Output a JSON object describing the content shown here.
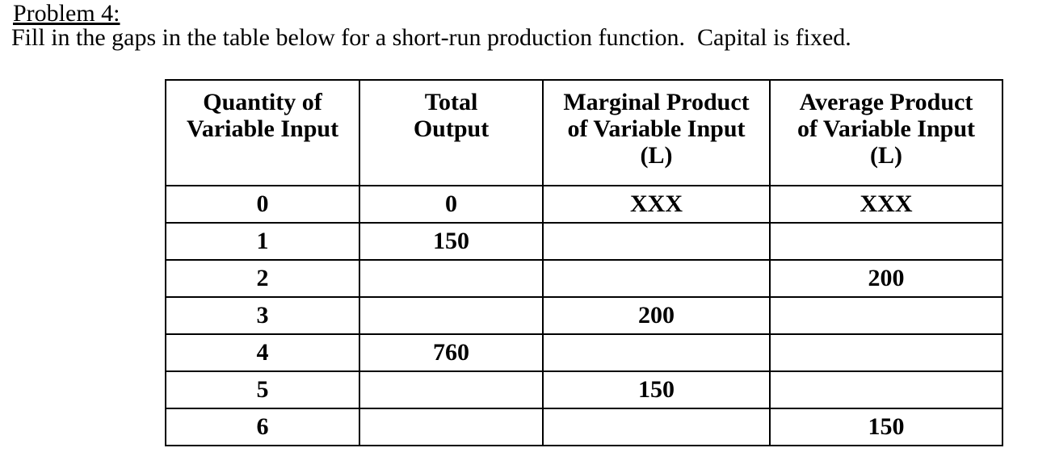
{
  "page": {
    "title": "Problem 4:",
    "instruction": "Fill in the gaps in the table below for a short-run production function.  Capital is fixed."
  },
  "table": {
    "headers": [
      "Quantity of\nVariable Input",
      "Total\nOutput",
      "Marginal Product\nof Variable Input\n(L)",
      "Average Product\nof Variable Input\n(L)"
    ],
    "rows": [
      [
        "0",
        "0",
        "XXX",
        "XXX"
      ],
      [
        "1",
        "150",
        "",
        ""
      ],
      [
        "2",
        "",
        "",
        "200"
      ],
      [
        "3",
        "",
        "200",
        ""
      ],
      [
        "4",
        "760",
        "",
        ""
      ],
      [
        "5",
        "",
        "150",
        ""
      ],
      [
        "6",
        "",
        "",
        "150"
      ]
    ]
  }
}
